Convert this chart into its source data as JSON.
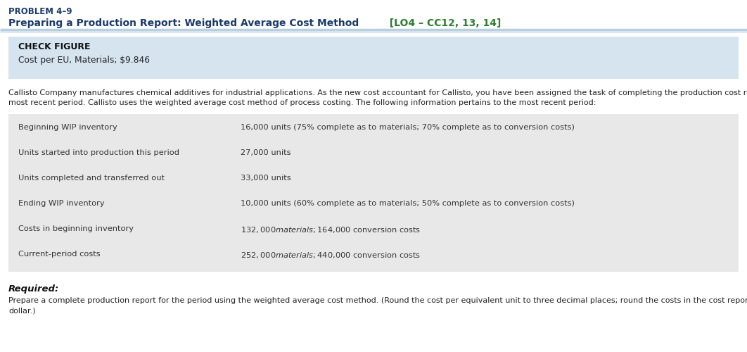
{
  "problem_label": "PROBLEM 4–9",
  "title_main": "Preparing a Production Report: Weighted Average Cost Method",
  "title_tag": "  [LO4 – CC12, 13, 14]",
  "check_figure_label": "CHECK FIGURE",
  "check_figure_value": "Cost per EU, Materials; $9.846",
  "body_text_line1": "Callisto Company manufactures chemical additives for industrial applications. As the new cost accountant for Callisto, you have been assigned the task of completing the production cost report for the",
  "body_text_line2": "most recent period. Callisto uses the weighted average cost method of process costing. The following information pertains to the most recent period:",
  "table_rows": [
    [
      "Beginning WIP inventory",
      "16,000 units (75% complete as to materials; 70% complete as to conversion costs)"
    ],
    [
      "Units started into production this period",
      "27,000 units"
    ],
    [
      "Units completed and transferred out",
      "33,000 units"
    ],
    [
      "Ending WIP inventory",
      "10,000 units (60% complete as to materials; 50% complete as to conversion costs)"
    ],
    [
      "Costs in beginning inventory",
      "$132,000 materials; $164,000 conversion costs"
    ],
    [
      "Current-period costs",
      "$252,000 materials; $440,000 conversion costs"
    ]
  ],
  "required_label": "Required:",
  "required_text": "Prepare a complete production report for the period using the weighted average cost method. (Round the cost per equivalent unit to three decimal places; round the costs in the cost report to the nearest",
  "required_text2": "dollar.)",
  "bg_color": "#ffffff",
  "header_line_color": "#b8cfe0",
  "check_bg_color": "#d6e4f0",
  "table_bg_color": "#e8e8e8",
  "problem_color": "#1a3a6b",
  "tag_color": "#2e7d32",
  "title_color": "#1a3a6b",
  "table_text_color": "#333333",
  "body_text_color": "#222222",
  "fig_width": 10.62,
  "fig_height": 5.0,
  "dpi": 100
}
